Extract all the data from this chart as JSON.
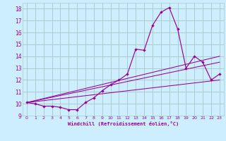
{
  "xlabel": "Windchill (Refroidissement éolien,°C)",
  "xlim": [
    -0.5,
    23.5
  ],
  "ylim": [
    9,
    18.5
  ],
  "yticks": [
    9,
    10,
    11,
    12,
    13,
    14,
    15,
    16,
    17,
    18
  ],
  "xticks": [
    0,
    1,
    2,
    3,
    4,
    5,
    6,
    7,
    8,
    9,
    10,
    11,
    12,
    13,
    14,
    15,
    16,
    17,
    18,
    19,
    20,
    21,
    22,
    23
  ],
  "bg_color": "#cceeff",
  "line_color": "#990099",
  "grid_color": "#aacccc",
  "series1_x": [
    0,
    1,
    2,
    3,
    4,
    5,
    6,
    7,
    8,
    9,
    10,
    11,
    12,
    13,
    14,
    15,
    16,
    17,
    18,
    19,
    20,
    21,
    22,
    23
  ],
  "series1_y": [
    10.1,
    10.0,
    9.8,
    9.8,
    9.7,
    9.5,
    9.5,
    10.1,
    10.5,
    11.1,
    11.6,
    12.0,
    12.5,
    14.6,
    14.5,
    16.6,
    17.7,
    18.1,
    16.3,
    13.0,
    14.0,
    13.5,
    12.0,
    12.5
  ],
  "series2_x": [
    0,
    23
  ],
  "series2_y": [
    10.1,
    12.0
  ],
  "series3_x": [
    0,
    23
  ],
  "series3_y": [
    10.1,
    13.5
  ],
  "series4_x": [
    0,
    23
  ],
  "series4_y": [
    10.1,
    14.0
  ]
}
